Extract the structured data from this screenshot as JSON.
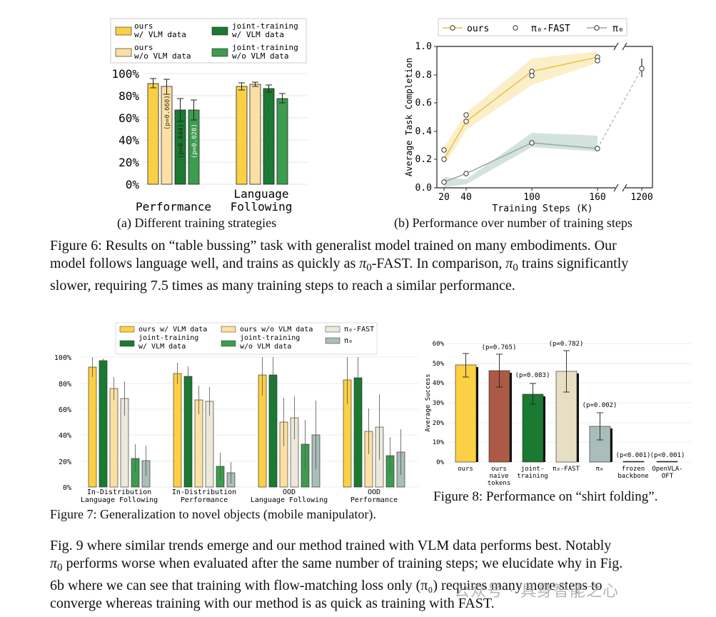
{
  "fig6": {
    "a": {
      "legend": [
        {
          "line1": "ours",
          "line2": "w/ VLM data",
          "color": "#fcd045"
        },
        {
          "line1": "ours",
          "line2": "w/o VLM data",
          "color": "#fbe0a3"
        },
        {
          "line1": "joint-training",
          "line2": "w/ VLM data",
          "color": "#1a7a31"
        },
        {
          "line1": "joint-training",
          "line2": "w/o VLM data",
          "color": "#3d9c4e"
        }
      ],
      "yticks": [
        "0%",
        "20%",
        "40%",
        "60%",
        "80%",
        "100%"
      ],
      "categories": [
        {
          "line1": "Performance",
          "line2": ""
        },
        {
          "line1": "Language",
          "line2": "Following"
        }
      ],
      "pvals": [
        "(p=0.660)",
        "(p=0.044)",
        "(p=0.028)"
      ],
      "caption": "(a) Different training strategies"
    },
    "b": {
      "legend": [
        "ours",
        "π₀-FAST",
        "π₀"
      ],
      "xlabel": "Training Steps (K)",
      "ylabel": "Average Task Completion",
      "xticks": [
        "20",
        "40",
        "100",
        "160",
        "1200"
      ],
      "yticks": [
        "0.0",
        "0.2",
        "0.4",
        "0.6",
        "0.8",
        "1.0"
      ],
      "caption": "(b) Performance over number of training steps"
    },
    "caption": {
      "label": "Figure 6:",
      "text1": " Results on “table bussing” task with generalist model trained on many embodiments. Our",
      "text2": "model follows language well, and trains as quickly as ",
      "pi": "π",
      "sub0": "0",
      "text3": "-FAST. In comparison, ",
      "text4": " trains significantly",
      "text5": "slower, requiring 7.5 times as many training steps to reach a similar performance."
    }
  },
  "fig7": {
    "legend": [
      {
        "line1": "ours w/ VLM data",
        "line2": "",
        "color": "#fcd045"
      },
      {
        "line1": "joint-training",
        "line2": "w/ VLM data",
        "color": "#1a7a31"
      },
      {
        "line1": "ours w/o VLM data",
        "line2": "",
        "color": "#fbe0a3"
      },
      {
        "line1": "joint-training",
        "line2": "w/o VLM data",
        "color": "#3d9c4e"
      },
      {
        "line1": "π₀-FAST",
        "line2": "",
        "color": "#ece8da"
      },
      {
        "line1": "π₀",
        "line2": "",
        "color": "#a9bdb9"
      }
    ],
    "yticks": [
      "0%",
      "20%",
      "40%",
      "60%",
      "80%",
      "100%"
    ],
    "groups": [
      {
        "line1": "In-Distribution",
        "line2": "Language Following"
      },
      {
        "line1": "In-Distribution",
        "line2": "Performance"
      },
      {
        "line1": "OOD",
        "line2": "Language Following"
      },
      {
        "line1": "OOD",
        "line2": "Performance"
      }
    ],
    "caption_label": "Figure 7:",
    "caption_text": " Generalization to novel objects (mobile manipulator)."
  },
  "fig8": {
    "yticks": [
      "0%",
      "10%",
      "20%",
      "30%",
      "40%",
      "50%",
      "60%"
    ],
    "ylabel": "Average Success",
    "bars": [
      {
        "label1": "ours",
        "label2": "",
        "label3": "",
        "pval": ""
      },
      {
        "label1": "ours",
        "label2": "naive",
        "label3": "tokens",
        "pval": "(p=0.765)"
      },
      {
        "label1": "joint-",
        "label2": "training",
        "label3": "",
        "pval": "(p=0.083)"
      },
      {
        "label1": "π₀-FAST",
        "label2": "",
        "label3": "",
        "pval": "(p=0.782)"
      },
      {
        "label1": "π₀",
        "label2": "",
        "label3": "",
        "pval": "(p=0.002)"
      },
      {
        "label1": "frozen",
        "label2": "backbone",
        "label3": "",
        "pval": "(p<0.001)"
      },
      {
        "label1": "OpenVLA-",
        "label2": "OFT",
        "label3": "",
        "pval": "(p<0.001)"
      }
    ],
    "caption_label": "Figure 8:",
    "caption_text": " Performance on “shirt folding”."
  },
  "paragraph": {
    "l1": "Fig. 9 where similar trends emerge and our method trained with VLM data performs best. Notably",
    "l2a": "π",
    "l2sub": "0",
    "l2b": " performs worse when evaluated after the same number of training steps; we elucidate why in Fig.",
    "l3": "6b where we can see that training with flow-matching loss only (π₀) requires many more steps to",
    "l4": "converge whereas training with our method is as quick as training with FAST."
  },
  "watermark": "公众号 · 具身智能之心",
  "chart_data": [
    {
      "type": "bar",
      "categories": [
        "Performance",
        "Language Following"
      ],
      "ylim": [
        0,
        100
      ],
      "series": [
        {
          "name": "ours w/ VLM data",
          "values": [
            91,
            88
          ]
        },
        {
          "name": "ours w/o VLM data",
          "values": [
            88,
            90
          ]
        },
        {
          "name": "joint-training w/ VLM data",
          "values": [
            67,
            86
          ]
        },
        {
          "name": "joint-training w/o VLM data",
          "values": [
            67,
            77
          ]
        }
      ]
    },
    {
      "type": "line",
      "x": [
        20,
        40,
        100,
        160,
        1200
      ],
      "ylim": [
        0,
        1
      ],
      "series": [
        {
          "name": "ours",
          "points": [
            [
              20,
              0.21
            ],
            [
              40,
              0.47
            ],
            [
              100,
              0.82
            ],
            [
              160,
              0.92
            ]
          ]
        },
        {
          "name": "π₀-FAST",
          "points": [
            [
              20,
              0.27
            ],
            [
              40,
              0.52
            ],
            [
              100,
              0.79
            ],
            [
              160,
              0.9
            ]
          ]
        },
        {
          "name": "π₀",
          "points": [
            [
              20,
              0.04
            ],
            [
              40,
              0.1
            ],
            [
              100,
              0.31
            ],
            [
              160,
              0.28
            ],
            [
              1200,
              0.85
            ]
          ]
        }
      ]
    },
    {
      "type": "bar",
      "categories": [
        "In-Distribution Language Following",
        "In-Distribution Performance",
        "OOD Language Following",
        "OOD Performance"
      ],
      "ylim": [
        0,
        100
      ],
      "series": [
        {
          "name": "ours w/ VLM data",
          "values": [
            92,
            87,
            86,
            82
          ]
        },
        {
          "name": "joint-training w/ VLM data",
          "values": [
            97,
            85,
            86,
            84
          ]
        },
        {
          "name": "ours w/o VLM data",
          "values": [
            76,
            67,
            50,
            43
          ]
        },
        {
          "name": "π₀-FAST",
          "values": [
            68,
            66,
            53,
            46
          ]
        },
        {
          "name": "joint-training w/o VLM data",
          "values": [
            22,
            16,
            33,
            24
          ]
        },
        {
          "name": "π₀",
          "values": [
            20,
            11,
            40,
            27
          ]
        }
      ]
    },
    {
      "type": "bar",
      "categories": [
        "ours",
        "ours naive tokens",
        "joint-training",
        "π₀-FAST",
        "π₀",
        "frozen backbone",
        "OpenVLA-OFT"
      ],
      "ylim": [
        0,
        60
      ],
      "values": [
        49,
        46,
        34,
        46,
        18,
        0,
        0
      ]
    }
  ]
}
